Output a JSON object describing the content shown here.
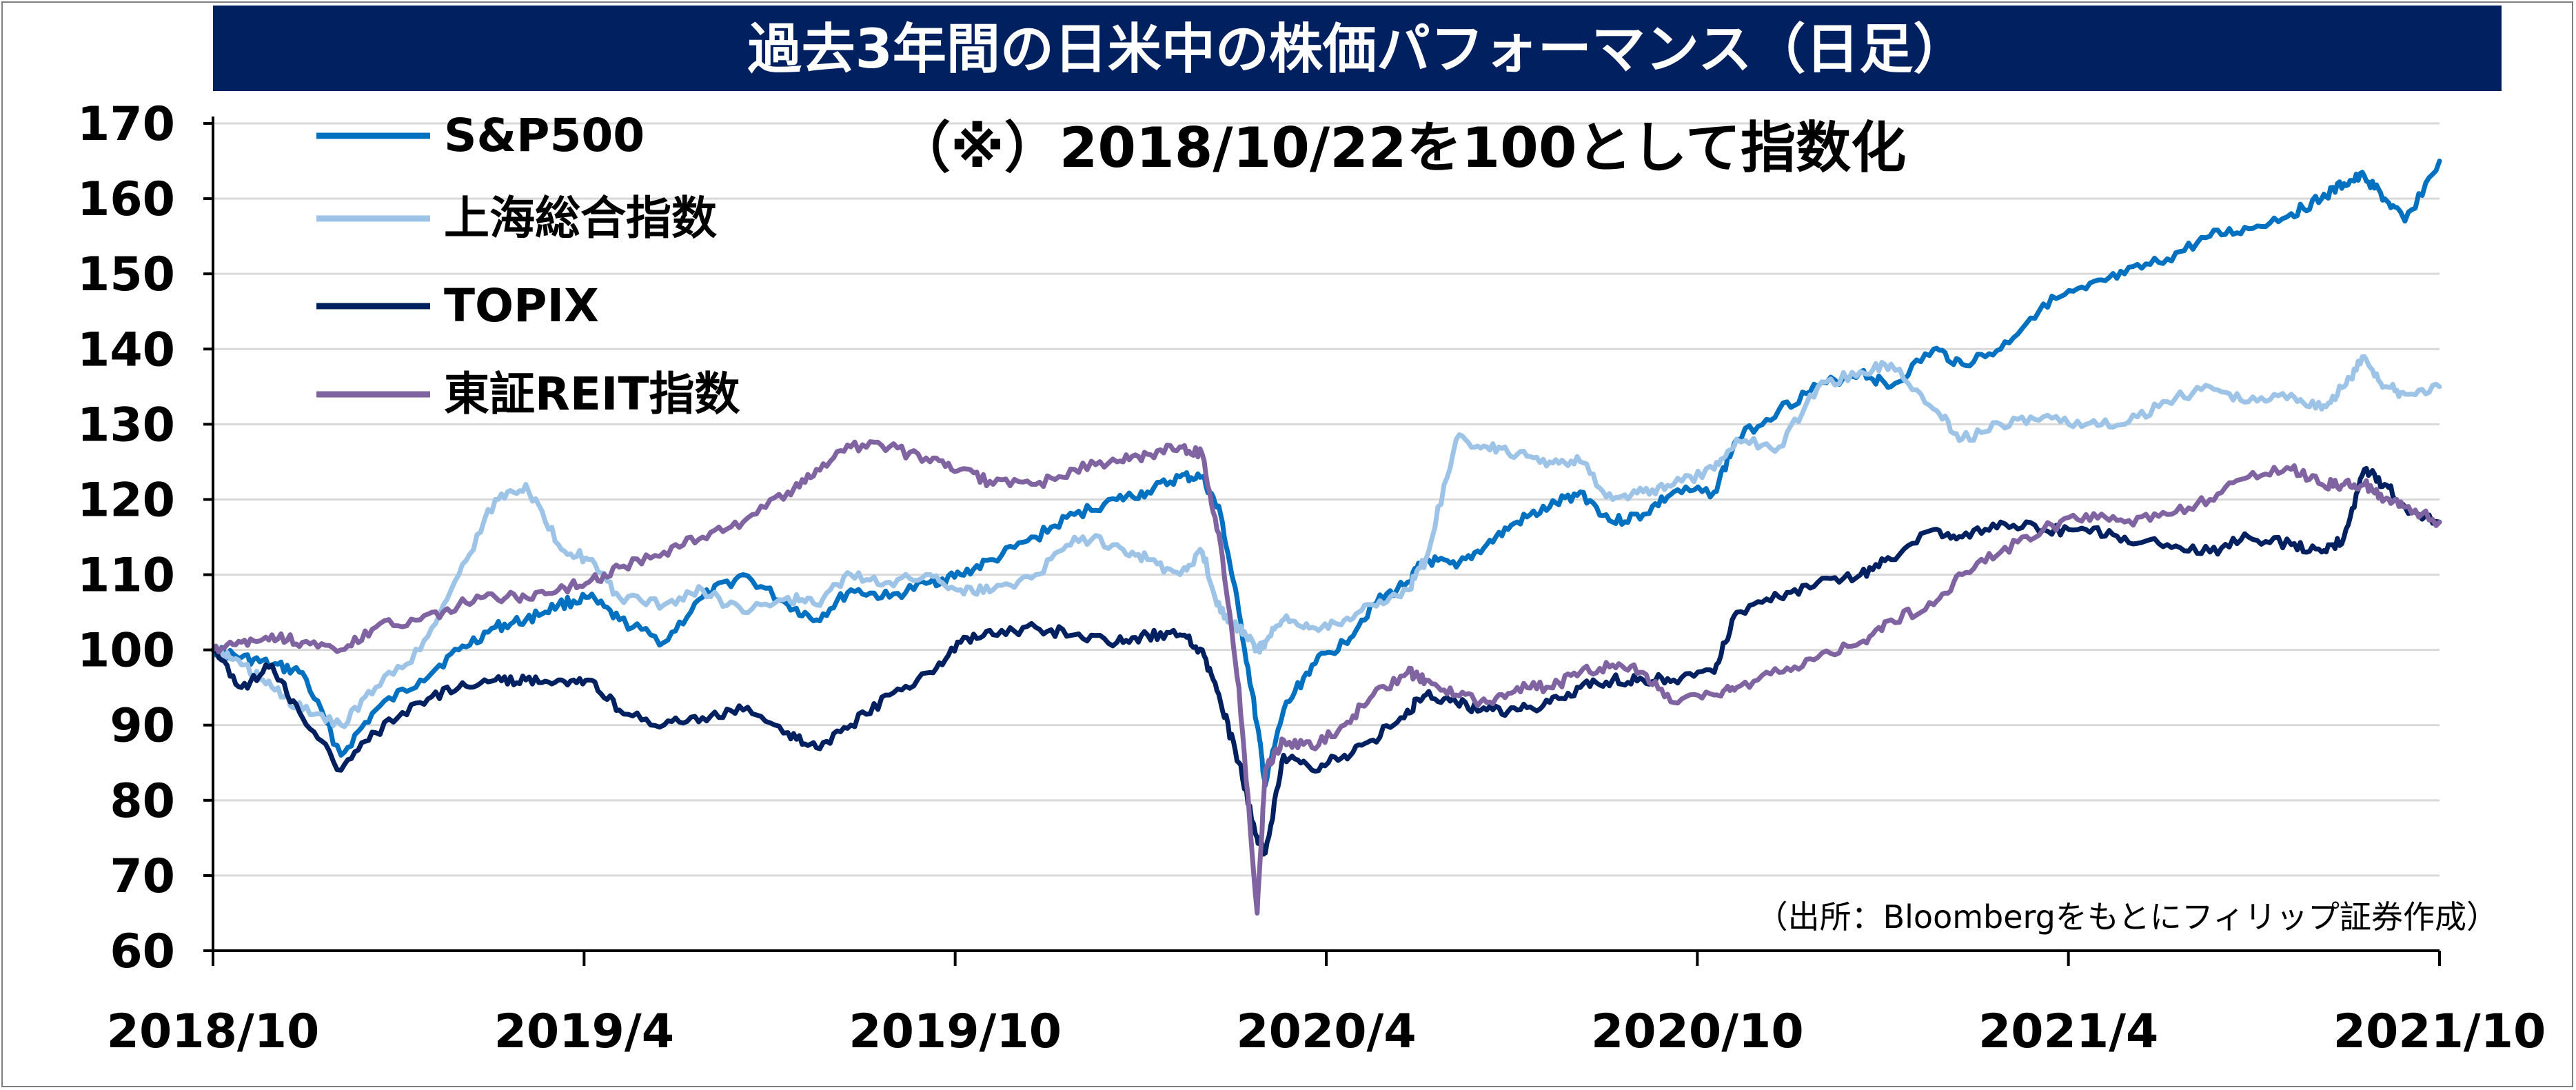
{
  "chart_data": {
    "type": "line",
    "title": "過去3年間の日米中の株価パフォーマンス（日足）",
    "annotation": "（※）2018/10/22を100として指数化",
    "source": "（出所：Bloombergをもとにフィリップ証券作成）",
    "xlabel": "",
    "ylabel": "",
    "ylim": [
      60,
      170
    ],
    "y_ticks": [
      "60",
      "70",
      "80",
      "90",
      "100",
      "110",
      "120",
      "130",
      "140",
      "150",
      "160",
      "170"
    ],
    "x_ticks": [
      "2018/10",
      "2019/4",
      "2019/10",
      "2020/4",
      "2020/10",
      "2021/4",
      "2021/10"
    ],
    "x_range": [
      "2018-10-22",
      "2021-10-22"
    ],
    "grid": true,
    "legend": "top-left",
    "x": [
      "2018-10-22",
      "2018-11-05",
      "2018-11-20",
      "2018-12-05",
      "2018-12-24",
      "2019-01-10",
      "2019-02-01",
      "2019-02-20",
      "2019-03-10",
      "2019-03-25",
      "2019-04-10",
      "2019-04-25",
      "2019-05-10",
      "2019-06-01",
      "2019-06-20",
      "2019-07-10",
      "2019-08-01",
      "2019-08-15",
      "2019-09-01",
      "2019-09-20",
      "2019-10-10",
      "2019-10-25",
      "2019-11-10",
      "2019-12-01",
      "2019-12-20",
      "2020-01-10",
      "2020-01-25",
      "2020-02-10",
      "2020-02-21",
      "2020-03-01",
      "2020-03-10",
      "2020-03-19",
      "2020-03-23",
      "2020-04-01",
      "2020-04-15",
      "2020-05-01",
      "2020-05-15",
      "2020-06-01",
      "2020-06-10",
      "2020-06-25",
      "2020-07-10",
      "2020-07-25",
      "2020-08-10",
      "2020-08-25",
      "2020-09-10",
      "2020-09-25",
      "2020-10-10",
      "2020-10-30",
      "2020-11-10",
      "2020-12-01",
      "2020-12-20",
      "2021-01-10",
      "2021-01-25",
      "2021-02-15",
      "2021-03-01",
      "2021-03-20",
      "2021-04-10",
      "2021-05-01",
      "2021-05-20",
      "2021-06-10",
      "2021-07-01",
      "2021-07-20",
      "2021-08-10",
      "2021-08-25",
      "2021-09-05",
      "2021-09-15",
      "2021-09-25",
      "2021-10-05",
      "2021-10-22"
    ],
    "series": [
      {
        "name": "S&P500",
        "color": "#0070c0",
        "values": [
          100,
          99,
          98,
          97,
          86,
          92,
          96,
          100,
          103,
          104,
          106,
          107,
          104,
          101,
          107,
          110,
          106,
          104,
          108,
          107,
          109,
          110,
          112,
          115,
          118,
          120,
          121,
          123,
          123,
          118,
          105,
          90,
          82,
          92,
          98,
          101,
          106,
          109,
          112,
          111,
          114,
          117,
          119,
          121,
          117,
          118,
          121,
          121,
          128,
          132,
          135,
          137,
          135,
          140,
          138,
          140,
          146,
          148,
          150,
          152,
          155,
          156,
          158,
          160,
          162,
          163,
          160,
          157,
          165
        ]
      },
      {
        "name": "上海総合指数",
        "color": "#9dc3e6",
        "values": [
          100,
          98,
          95,
          92,
          90,
          95,
          100,
          110,
          120,
          122,
          114,
          112,
          107,
          106,
          108,
          105,
          107,
          106,
          110,
          109,
          110,
          108,
          108,
          110,
          115,
          114,
          112,
          110,
          113,
          105,
          103,
          100,
          101,
          104,
          103,
          104,
          106,
          108,
          112,
          128,
          127,
          126,
          125,
          125,
          120,
          121,
          122,
          124,
          128,
          127,
          135,
          137,
          138,
          132,
          128,
          130,
          131,
          130,
          130,
          133,
          135,
          133,
          134,
          132,
          135,
          139,
          135,
          134,
          135
        ]
      },
      {
        "name": "TOPIX",
        "color": "#002060",
        "values": [
          100,
          95,
          98,
          91,
          84,
          89,
          93,
          95,
          96,
          96,
          96,
          96,
          92,
          90,
          91,
          92,
          89,
          87,
          90,
          94,
          97,
          101,
          102,
          103,
          102,
          101,
          102,
          102,
          100,
          93,
          85,
          75,
          73,
          86,
          84,
          86,
          88,
          92,
          94,
          93,
          92,
          92,
          93,
          95,
          96,
          96,
          96,
          97,
          105,
          107,
          109,
          110,
          112,
          116,
          115,
          117,
          116,
          116,
          115,
          114,
          113,
          115,
          114,
          113,
          115,
          124,
          122,
          119,
          117
        ]
      },
      {
        "name": "東証REIT指数",
        "color": "#8064a2",
        "values": [
          100,
          101,
          102,
          101,
          100,
          103,
          104,
          106,
          107,
          107,
          108,
          109,
          111,
          113,
          115,
          117,
          121,
          124,
          127,
          127,
          125,
          124,
          122,
          122,
          124,
          125,
          126,
          127,
          126,
          114,
          95,
          65,
          84,
          88,
          87,
          90,
          94,
          97,
          96,
          94,
          93,
          95,
          95,
          97,
          98,
          97,
          93,
          94,
          95,
          97,
          99,
          101,
          104,
          106,
          110,
          113,
          116,
          118,
          117,
          118,
          120,
          123,
          124,
          122,
          122,
          122,
          120,
          119,
          117
        ]
      }
    ]
  }
}
